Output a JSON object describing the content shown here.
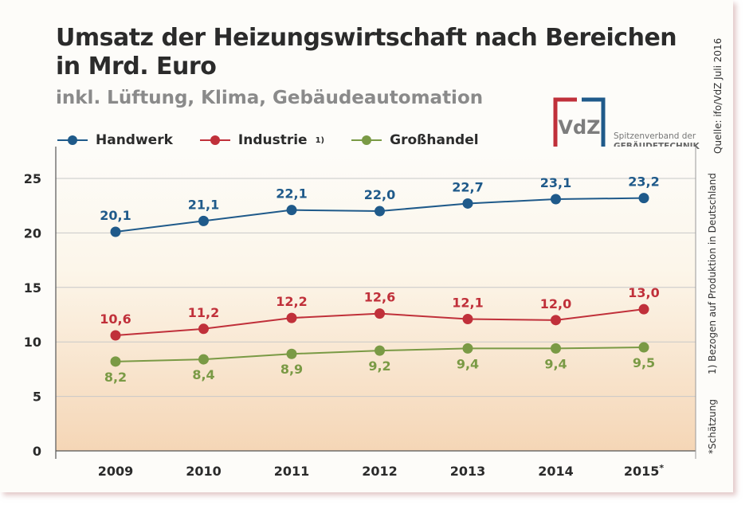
{
  "header": {
    "title_line1": "Umsatz der Heizungswirtschaft nach Bereichen",
    "title_line2": "in Mrd. Euro",
    "subtitle": "inkl. Lüftung, Klima, Gebäudeautomation"
  },
  "logo": {
    "mark": "VdZ",
    "line1": "Spitzenverband der",
    "line2": "GEBÄUDETECHNIK",
    "colors": {
      "red": "#c0303a",
      "blue": "#1f5a8a",
      "gray": "#7d7d7d"
    }
  },
  "notes": {
    "source": "Quelle: ifo/VdZ Juli 2016",
    "footnote1": "1) Bezogen auf Produktion in Deutschland",
    "estimate": "*Schätzung"
  },
  "chart_data": {
    "type": "line",
    "title": "Umsatz der Heizungswirtschaft nach Bereichen in Mrd. Euro",
    "categories": [
      "2009",
      "2010",
      "2011",
      "2012",
      "2013",
      "2014",
      "2015*"
    ],
    "ylim": [
      0,
      25
    ],
    "yticks": [
      "0",
      "5",
      "10",
      "15",
      "20",
      "25"
    ],
    "grid": true,
    "legend_position": "top-left",
    "series": [
      {
        "name": "Handwerk",
        "sup": "",
        "color": "#1f5a8a",
        "values": [
          20.1,
          21.1,
          22.1,
          22.0,
          22.7,
          23.1,
          23.2
        ],
        "labels": [
          "20,1",
          "21,1",
          "22,1",
          "22,0",
          "22,7",
          "23,1",
          "23,2"
        ],
        "label_pos": "above"
      },
      {
        "name": "Industrie",
        "sup": "1)",
        "color": "#c0303a",
        "values": [
          10.6,
          11.2,
          12.2,
          12.6,
          12.1,
          12.0,
          13.0
        ],
        "labels": [
          "10,6",
          "11,2",
          "12,2",
          "12,6",
          "12,1",
          "12,0",
          "13,0"
        ],
        "label_pos": "above"
      },
      {
        "name": "Großhandel",
        "sup": "",
        "color": "#7a9a45",
        "values": [
          8.2,
          8.4,
          8.9,
          9.2,
          9.4,
          9.4,
          9.5
        ],
        "labels": [
          "8,2",
          "8,4",
          "8,9",
          "9,2",
          "9,4",
          "9,4",
          "9,5"
        ],
        "label_pos": "below"
      }
    ]
  }
}
